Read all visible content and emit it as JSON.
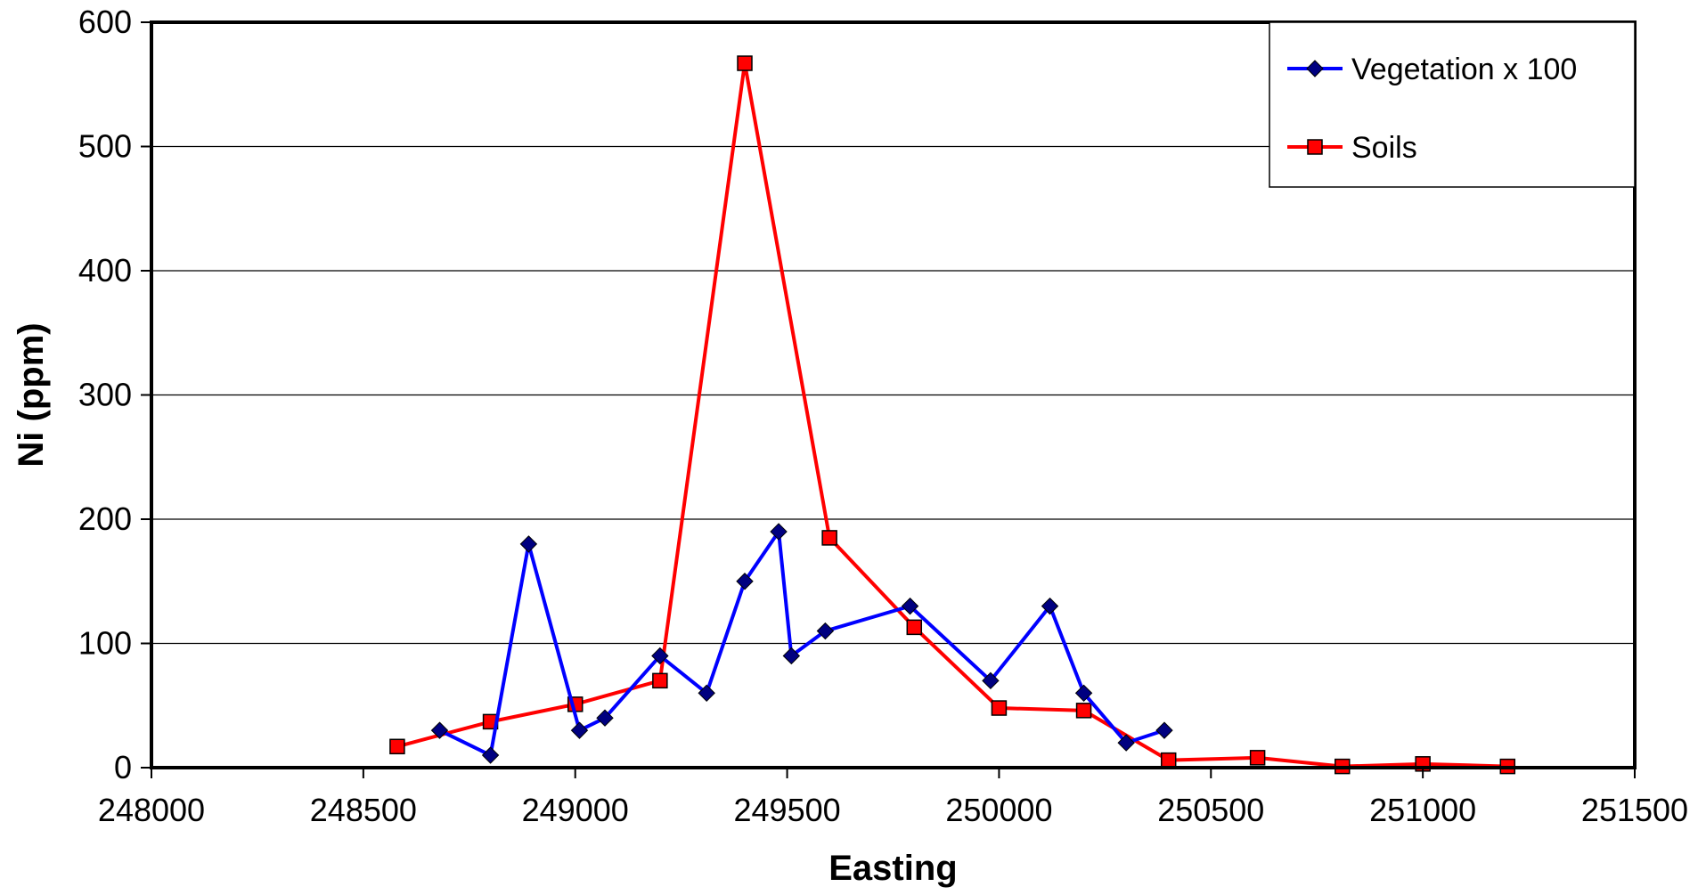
{
  "chart_data": {
    "type": "line",
    "title": "",
    "xlabel": "Easting",
    "ylabel": "Ni (ppm)",
    "xlim": [
      248000,
      251500
    ],
    "ylim": [
      0,
      600
    ],
    "x_ticks": [
      248000,
      248500,
      249000,
      249500,
      250000,
      250500,
      251000,
      251500
    ],
    "y_ticks": [
      0,
      100,
      200,
      300,
      400,
      500,
      600
    ],
    "grid": "horizontal",
    "legend_position": "top-right",
    "series": [
      {
        "name": "Vegetation x 100",
        "color": "#0000ff",
        "marker": "diamond",
        "x": [
          248680,
          248800,
          248890,
          249010,
          249070,
          249200,
          249310,
          249400,
          249480,
          249510,
          249590,
          249790,
          249980,
          250120,
          250200,
          250300,
          250390
        ],
        "y": [
          30,
          10,
          180,
          30,
          40,
          90,
          60,
          150,
          190,
          90,
          110,
          130,
          70,
          130,
          60,
          20,
          30
        ]
      },
      {
        "name": "Soils",
        "color": "#ff0000",
        "marker": "square",
        "x": [
          248580,
          248800,
          249000,
          249200,
          249400,
          249600,
          249800,
          250000,
          250200,
          250400,
          250610,
          250810,
          251000,
          251200
        ],
        "y": [
          17,
          37,
          51,
          70,
          567,
          185,
          113,
          48,
          46,
          6,
          8,
          1,
          3,
          1
        ]
      }
    ]
  }
}
